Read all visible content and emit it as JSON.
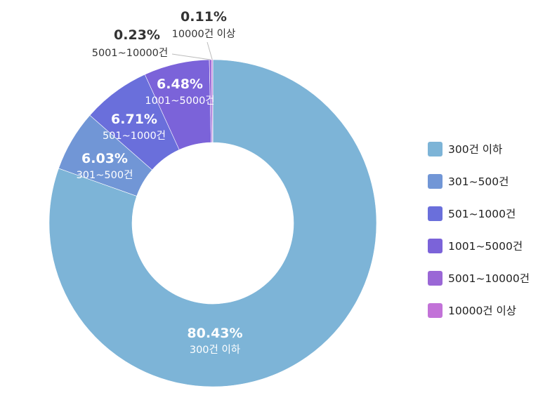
{
  "chart_data": {
    "type": "pie",
    "donut": true,
    "categories": [
      "300건 이하",
      "301~500건",
      "501~1000건",
      "1001~5000건",
      "5001~10000건",
      "10000건 이상"
    ],
    "values": [
      80.43,
      6.03,
      6.71,
      6.48,
      0.23,
      0.11
    ],
    "value_labels": [
      "80.43%",
      "6.03%",
      "6.71%",
      "6.48%",
      "0.23%",
      "0.11%"
    ],
    "colors": [
      "#7db4d7",
      "#7196d6",
      "#6a6fdb",
      "#7b63d9",
      "#9a67d6",
      "#c272d8"
    ],
    "legend_placement": "right"
  }
}
